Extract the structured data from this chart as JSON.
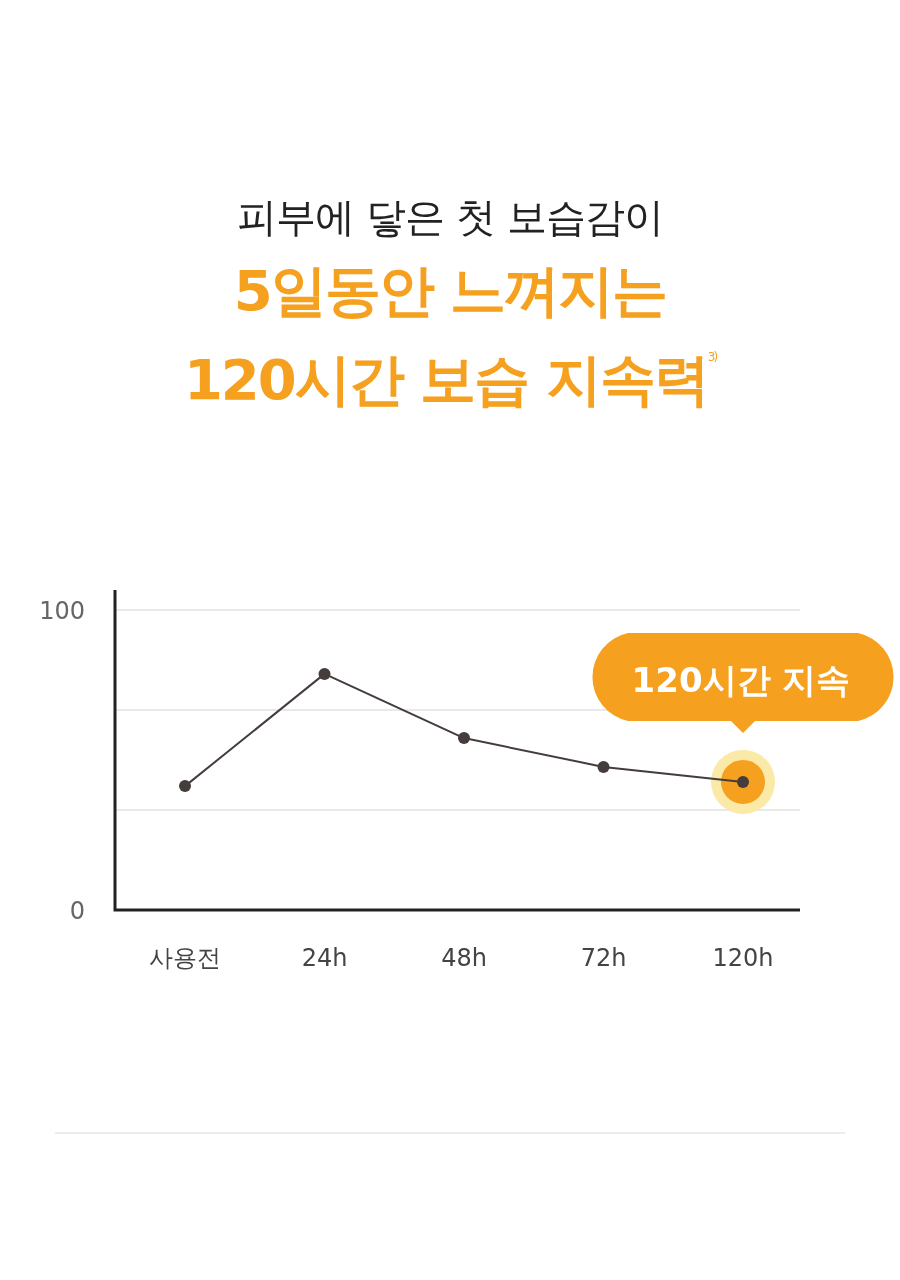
{
  "chart_data": {
    "type": "line",
    "subtitle": "피부에 닿은 첫 보습감이",
    "title": "5일동안 느껴지는 120시간 보습 지속력$^{3)}$",
    "categories": [
      "사용전",
      "24h",
      "48h",
      "72h",
      "120h"
    ],
    "series": [
      {
        "color": "#453c3c",
        "values": [
          41.3,
          78.7,
          57.3,
          47.7,
          42.7
        ]
      }
    ],
    "ylim": [
      0,
      100
    ],
    "yticks": [
      0,
      {
        "value": 33.3,
        "label": null
      },
      {
        "value": 66.7,
        "label": null
      },
      100
    ],
    "grid": "y",
    "marker": "circle",
    "line_style": "solid",
    "annotations": [
      {
        "text": "120시간 지속",
        "x": "120h",
        "y": 42.7
      }
    ]
  }
}
